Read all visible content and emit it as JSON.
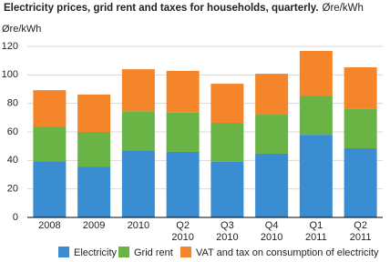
{
  "chart_data": {
    "type": "stacked_bar",
    "title": "Electricity prices, grid rent and taxes for households, quarterly.",
    "subtitle": "Øre/kWh",
    "y_label": "Øre/kWh",
    "categories": [
      "2008",
      "2009",
      "2010",
      "Q2 2010",
      "Q3 2010",
      "Q4 2010",
      "Q1 2011",
      "Q2 2011"
    ],
    "series": [
      {
        "name": "Electricity",
        "color": "#3a8dd0",
        "values": [
          39.5,
          35.7,
          47,
          46,
          39,
          44.7,
          58,
          48.5
        ]
      },
      {
        "name": "Grid rent",
        "color": "#6ab446",
        "values": [
          24.3,
          24.3,
          27.5,
          27.5,
          27.4,
          27.4,
          27.5,
          27.5
        ]
      },
      {
        "name": "VAT and tax on consumption of electricity",
        "color": "#f5852a",
        "values": [
          25.5,
          26.2,
          29.5,
          29.3,
          27.4,
          28.7,
          31.3,
          29.3
        ]
      }
    ],
    "ylim": [
      0,
      120
    ],
    "yticks": [
      0,
      20,
      40,
      60,
      80,
      100,
      120
    ],
    "grid": true
  }
}
